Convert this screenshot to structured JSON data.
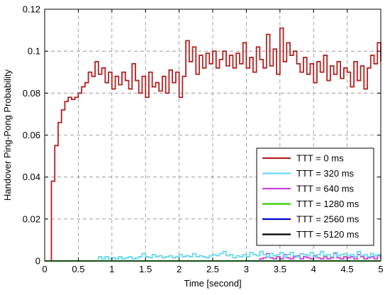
{
  "chart_data": {
    "type": "line",
    "step": true,
    "title": "",
    "xlabel": "Time [second]",
    "ylabel": "Handover Ping-Pong Probability",
    "xlim": [
      0,
      5
    ],
    "ylim": [
      0,
      0.12
    ],
    "xticks": [
      0,
      0.5,
      1,
      1.5,
      2,
      2.5,
      3,
      3.5,
      4,
      4.5,
      5
    ],
    "yticks": [
      0,
      0.02,
      0.04,
      0.06,
      0.08,
      0.1,
      0.12
    ],
    "xtick_labels": [
      "0",
      "0.5",
      "1",
      "1.5",
      "2",
      "2.5",
      "3",
      "3.5",
      "4",
      "4.5",
      "5"
    ],
    "ytick_labels": [
      "0",
      "0.02",
      "0.04",
      "0.06",
      "0.08",
      "0.1",
      "0.12"
    ],
    "grid": true,
    "legend_position": "lower-right",
    "series": [
      {
        "name": "TTT = 0 ms",
        "color": "#b22222",
        "x": [
          0.1,
          0.15,
          0.2,
          0.25,
          0.3,
          0.35,
          0.4,
          0.45,
          0.5,
          0.55,
          0.6,
          0.65,
          0.7,
          0.75,
          0.8,
          0.85,
          0.9,
          0.95,
          1.0,
          1.05,
          1.1,
          1.15,
          1.2,
          1.25,
          1.3,
          1.35,
          1.4,
          1.45,
          1.5,
          1.55,
          1.6,
          1.65,
          1.7,
          1.75,
          1.8,
          1.85,
          1.9,
          1.95,
          2.0,
          2.05,
          2.1,
          2.15,
          2.2,
          2.25,
          2.3,
          2.35,
          2.4,
          2.45,
          2.5,
          2.55,
          2.6,
          2.65,
          2.7,
          2.75,
          2.8,
          2.85,
          2.9,
          2.95,
          3.0,
          3.05,
          3.1,
          3.15,
          3.2,
          3.25,
          3.3,
          3.35,
          3.4,
          3.45,
          3.5,
          3.55,
          3.6,
          3.65,
          3.7,
          3.75,
          3.8,
          3.85,
          3.9,
          3.95,
          4.0,
          4.05,
          4.1,
          4.15,
          4.2,
          4.25,
          4.3,
          4.35,
          4.4,
          4.45,
          4.5,
          4.55,
          4.6,
          4.65,
          4.7,
          4.75,
          4.8,
          4.85,
          4.9,
          4.95,
          5.0
        ],
        "y": [
          0.038,
          0.055,
          0.066,
          0.072,
          0.076,
          0.078,
          0.077,
          0.078,
          0.08,
          0.083,
          0.085,
          0.09,
          0.088,
          0.095,
          0.089,
          0.092,
          0.085,
          0.09,
          0.082,
          0.088,
          0.084,
          0.09,
          0.086,
          0.082,
          0.094,
          0.086,
          0.08,
          0.088,
          0.078,
          0.09,
          0.083,
          0.085,
          0.081,
          0.088,
          0.08,
          0.091,
          0.085,
          0.09,
          0.078,
          0.088,
          0.105,
          0.095,
          0.102,
          0.089,
          0.098,
          0.092,
          0.099,
          0.094,
          0.1,
          0.092,
          0.096,
          0.1,
          0.093,
          0.098,
          0.092,
          0.099,
          0.094,
          0.104,
          0.092,
          0.097,
          0.09,
          0.102,
          0.096,
          0.092,
          0.108,
          0.093,
          0.101,
          0.089,
          0.111,
          0.095,
          0.104,
          0.098,
          0.1,
          0.094,
          0.09,
          0.097,
          0.089,
          0.094,
          0.085,
          0.095,
          0.09,
          0.098,
          0.086,
          0.093,
          0.089,
          0.095,
          0.087,
          0.092,
          0.09,
          0.083,
          0.095,
          0.086,
          0.093,
          0.082,
          0.092,
          0.098,
          0.094,
          0.104,
          0.095
        ]
      },
      {
        "name": "TTT = 320 ms",
        "color": "#66d9f2",
        "x": [
          0.8,
          0.85,
          0.9,
          0.95,
          1.0,
          1.05,
          1.1,
          1.15,
          1.2,
          1.25,
          1.3,
          1.35,
          1.4,
          1.45,
          1.5,
          1.55,
          1.6,
          1.65,
          1.7,
          1.75,
          1.8,
          1.85,
          1.9,
          1.95,
          2.0,
          2.05,
          2.1,
          2.15,
          2.2,
          2.25,
          2.3,
          2.35,
          2.4,
          2.45,
          2.5,
          2.55,
          2.6,
          2.65,
          2.7,
          2.75,
          2.8,
          2.85,
          2.9,
          2.95,
          3.0,
          3.05,
          3.1,
          3.15,
          3.2,
          3.25,
          3.3,
          3.35,
          3.4,
          3.45,
          3.5,
          3.55,
          3.6,
          3.65,
          3.7,
          3.75,
          3.8,
          3.85,
          3.9,
          3.95,
          4.0,
          4.05,
          4.1,
          4.15,
          4.2,
          4.25,
          4.3,
          4.35,
          4.4,
          4.45,
          4.5,
          4.55,
          4.6,
          4.65,
          4.7,
          4.75,
          4.8,
          4.85,
          4.9,
          4.95,
          5.0
        ],
        "y": [
          0.002,
          0.001,
          0.002,
          0.001,
          0.0015,
          0.001,
          0.002,
          0.001,
          0.0015,
          0.002,
          0.001,
          0.0015,
          0.002,
          0.0035,
          0.002,
          0.0015,
          0.003,
          0.002,
          0.0025,
          0.0015,
          0.002,
          0.0025,
          0.0015,
          0.002,
          0.003,
          0.002,
          0.0025,
          0.002,
          0.0035,
          0.002,
          0.0025,
          0.002,
          0.0015,
          0.0025,
          0.003,
          0.0025,
          0.0035,
          0.0045,
          0.0025,
          0.003,
          0.0015,
          0.0025,
          0.002,
          0.003,
          0.002,
          0.004,
          0.003,
          0.0025,
          0.0045,
          0.003,
          0.002,
          0.0035,
          0.0025,
          0.003,
          0.004,
          0.002,
          0.003,
          0.004,
          0.0025,
          0.002,
          0.0035,
          0.003,
          0.0025,
          0.004,
          0.002,
          0.003,
          0.0045,
          0.0025,
          0.003,
          0.002,
          0.004,
          0.0025,
          0.003,
          0.0035,
          0.0025,
          0.003,
          0.002,
          0.0045,
          0.0025,
          0.003,
          0.002,
          0.0035,
          0.0025,
          0.003,
          0.002
        ]
      },
      {
        "name": "TTT = 640 ms",
        "color": "#cc44dd",
        "x": [
          3.2,
          3.25,
          3.3,
          3.35,
          3.4,
          3.45,
          3.5,
          3.55,
          3.6,
          3.65,
          3.7,
          3.75,
          3.8,
          3.85,
          3.9,
          3.95,
          4.0,
          4.05,
          4.1,
          4.15,
          4.2,
          4.25,
          4.3,
          4.35,
          4.4,
          4.45,
          4.5,
          4.55,
          4.6,
          4.65,
          4.7,
          4.75,
          4.8,
          4.85,
          4.9,
          4.95,
          5.0
        ],
        "y": [
          0.001,
          0.0015,
          0.0035,
          0.0015,
          0.001,
          0.002,
          0.001,
          0.003,
          0.0015,
          0.001,
          0.002,
          0.0025,
          0.001,
          0.002,
          0.0015,
          0.001,
          0.0025,
          0.0015,
          0.001,
          0.002,
          0.001,
          0.0015,
          0.0035,
          0.0015,
          0.001,
          0.002,
          0.0015,
          0.002,
          0.001,
          0.003,
          0.002,
          0.001,
          0.0015,
          0.002,
          0.001,
          0.0025,
          0.001
        ]
      },
      {
        "name": "TTT = 1280 ms",
        "color": "#33cc00",
        "x": [
          0.0,
          5.0
        ],
        "y": [
          0.0,
          0.0
        ]
      },
      {
        "name": "TTT = 2560 ms",
        "color": "#0000cc",
        "x": [
          0.0,
          5.0
        ],
        "y": [
          0.0,
          0.0
        ]
      },
      {
        "name": "TTT = 5120 ms",
        "color": "#000000",
        "x": [
          0.0,
          5.0
        ],
        "y": [
          0.0,
          0.0
        ]
      }
    ]
  }
}
